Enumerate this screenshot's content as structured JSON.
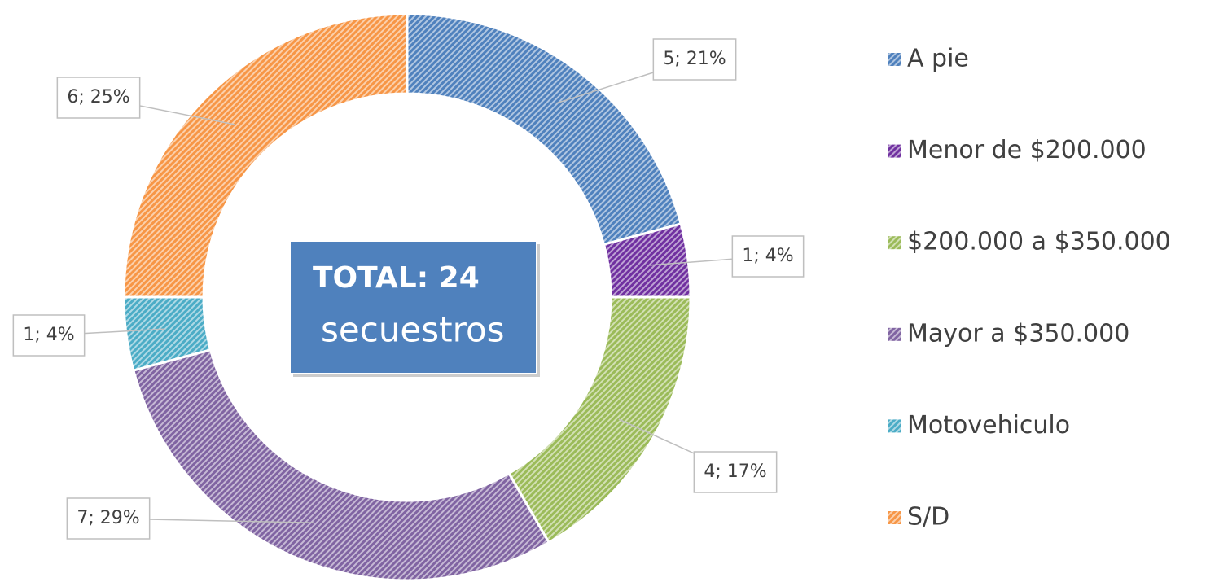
{
  "chart_data": {
    "type": "donut",
    "categories": [
      "A pie",
      "Menor de $200.000",
      "$200.000 a $350.000",
      "Mayor a $350.000",
      "Motovehiculo",
      "S/D"
    ],
    "values": [
      5,
      1,
      4,
      7,
      1,
      6
    ],
    "value_labels": [
      "5; 21%",
      "1; 4%",
      "4; 17%",
      "7; 29%",
      "1; 4%",
      "6; 25%"
    ],
    "colors": [
      "#4f81bd",
      "#7030a0",
      "#9bbb59",
      "#8064a2",
      "#4bacc6",
      "#f79646"
    ],
    "annotation": {
      "title": "TOTAL: 24",
      "subtitle": "secuestros"
    },
    "legend": "right"
  }
}
